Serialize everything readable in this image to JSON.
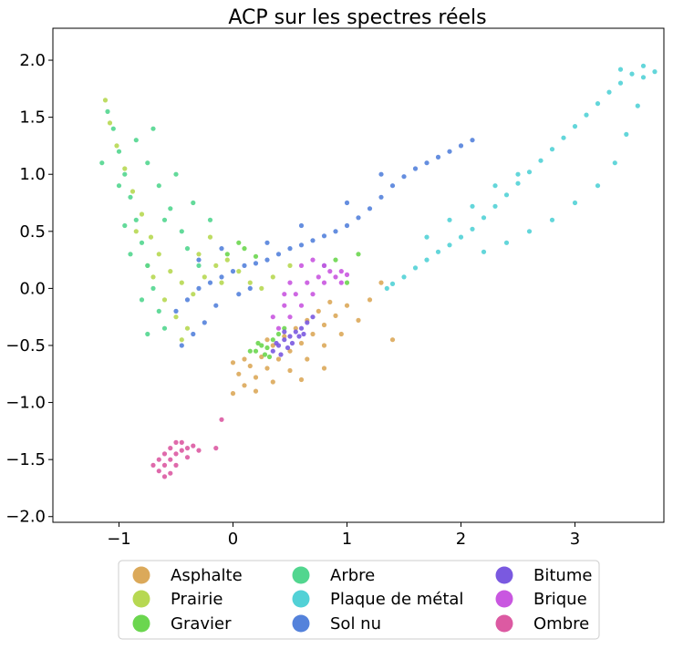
{
  "chart_data": {
    "type": "scatter",
    "title": "ACP sur les spectres réels",
    "xlabel": "",
    "ylabel": "",
    "xlim": [
      -1.58,
      3.78
    ],
    "ylim": [
      -2.05,
      2.28
    ],
    "xticks": [
      -1,
      0,
      1,
      2,
      3
    ],
    "yticks": [
      -2.0,
      -1.5,
      -1.0,
      -0.5,
      0.0,
      0.5,
      1.0,
      1.5,
      2.0
    ],
    "xtick_labels": [
      "−1",
      "0",
      "1",
      "2",
      "3"
    ],
    "ytick_labels": [
      "−2.0",
      "−1.5",
      "−1.0",
      "−0.5",
      "0.0",
      "0.5",
      "1.0",
      "1.5",
      "2.0"
    ],
    "grid": false,
    "legend_position": "bottom-center",
    "legend_columns": 3,
    "series": [
      {
        "name": "Asphalte",
        "color": "#dba95a",
        "points": [
          [
            0.0,
            -0.92
          ],
          [
            0.1,
            -0.85
          ],
          [
            0.2,
            -0.78
          ],
          [
            0.3,
            -0.7
          ],
          [
            0.4,
            -0.62
          ],
          [
            0.5,
            -0.55
          ],
          [
            0.6,
            -0.48
          ],
          [
            0.7,
            -0.4
          ],
          [
            0.8,
            -0.32
          ],
          [
            0.9,
            -0.24
          ],
          [
            1.0,
            -0.15
          ],
          [
            0.05,
            -0.75
          ],
          [
            0.15,
            -0.68
          ],
          [
            0.25,
            -0.6
          ],
          [
            0.35,
            -0.5
          ],
          [
            0.45,
            -0.42
          ],
          [
            0.55,
            -0.35
          ],
          [
            0.65,
            -0.28
          ],
          [
            0.75,
            -0.2
          ],
          [
            0.85,
            -0.12
          ],
          [
            0.2,
            -0.9
          ],
          [
            0.35,
            -0.82
          ],
          [
            0.5,
            -0.72
          ],
          [
            0.65,
            -0.62
          ],
          [
            0.8,
            -0.5
          ],
          [
            0.95,
            -0.4
          ],
          [
            1.1,
            -0.28
          ],
          [
            1.2,
            -0.1
          ],
          [
            0.1,
            -0.62
          ],
          [
            0.3,
            -0.45
          ],
          [
            0.0,
            -0.65
          ],
          [
            1.4,
            -0.45
          ],
          [
            1.3,
            0.05
          ],
          [
            0.8,
            -0.7
          ],
          [
            0.6,
            -0.8
          ]
        ]
      },
      {
        "name": "Prairie",
        "color": "#b7d852",
        "points": [
          [
            -1.12,
            1.65
          ],
          [
            -1.08,
            1.45
          ],
          [
            -1.02,
            1.25
          ],
          [
            -0.95,
            1.05
          ],
          [
            -0.88,
            0.85
          ],
          [
            -0.8,
            0.65
          ],
          [
            -0.72,
            0.45
          ],
          [
            -0.65,
            0.3
          ],
          [
            -0.55,
            0.15
          ],
          [
            -0.45,
            0.05
          ],
          [
            -0.35,
            -0.05
          ],
          [
            -0.25,
            0.1
          ],
          [
            -0.15,
            0.2
          ],
          [
            -0.05,
            0.25
          ],
          [
            0.05,
            0.15
          ],
          [
            0.15,
            0.05
          ],
          [
            0.25,
            0.0
          ],
          [
            -0.6,
            -0.1
          ],
          [
            -0.5,
            -0.25
          ],
          [
            -0.4,
            -0.35
          ],
          [
            -0.7,
            0.1
          ],
          [
            -0.3,
            0.3
          ],
          [
            -0.2,
            0.45
          ],
          [
            -0.1,
            0.05
          ],
          [
            0.35,
            0.1
          ],
          [
            0.5,
            0.2
          ],
          [
            -0.85,
            0.5
          ],
          [
            -0.75,
            0.2
          ],
          [
            -0.45,
            -0.45
          ]
        ]
      },
      {
        "name": "Gravier",
        "color": "#6bd64f",
        "points": [
          [
            0.2,
            -0.55
          ],
          [
            0.25,
            -0.5
          ],
          [
            0.3,
            -0.52
          ],
          [
            0.35,
            -0.45
          ],
          [
            0.28,
            -0.58
          ],
          [
            0.4,
            -0.4
          ],
          [
            0.22,
            -0.48
          ],
          [
            0.32,
            -0.6
          ],
          [
            0.15,
            -0.55
          ],
          [
            0.45,
            -0.35
          ],
          [
            -0.05,
            0.3
          ],
          [
            0.1,
            0.35
          ],
          [
            0.2,
            0.28
          ],
          [
            0.05,
            0.4
          ],
          [
            1.0,
            0.05
          ],
          [
            1.1,
            0.3
          ],
          [
            0.9,
            0.25
          ]
        ]
      },
      {
        "name": "Arbre",
        "color": "#52d68f",
        "points": [
          [
            -1.1,
            1.55
          ],
          [
            -1.05,
            1.4
          ],
          [
            -1.0,
            1.2
          ],
          [
            -0.95,
            1.0
          ],
          [
            -0.9,
            0.8
          ],
          [
            -0.85,
            0.6
          ],
          [
            -0.8,
            0.4
          ],
          [
            -0.75,
            0.2
          ],
          [
            -0.7,
            0.0
          ],
          [
            -0.65,
            -0.2
          ],
          [
            -0.85,
            1.3
          ],
          [
            -0.75,
            1.1
          ],
          [
            -0.65,
            0.9
          ],
          [
            -0.55,
            0.7
          ],
          [
            -0.45,
            0.5
          ],
          [
            -1.0,
            0.9
          ],
          [
            -0.9,
            0.3
          ],
          [
            -0.8,
            -0.1
          ],
          [
            -0.6,
            0.6
          ],
          [
            -0.4,
            0.35
          ],
          [
            -0.3,
            0.2
          ],
          [
            -0.75,
            -0.4
          ],
          [
            -0.5,
            1.0
          ],
          [
            -0.35,
            0.75
          ],
          [
            -1.15,
            1.1
          ],
          [
            -0.2,
            0.6
          ],
          [
            -0.95,
            0.55
          ],
          [
            -0.7,
            1.4
          ],
          [
            -0.6,
            -0.35
          ]
        ]
      },
      {
        "name": "Plaque de métal",
        "color": "#52d1d6",
        "points": [
          [
            3.6,
            1.95
          ],
          [
            3.5,
            1.88
          ],
          [
            3.4,
            1.8
          ],
          [
            3.3,
            1.72
          ],
          [
            3.2,
            1.62
          ],
          [
            3.1,
            1.52
          ],
          [
            3.0,
            1.42
          ],
          [
            2.9,
            1.32
          ],
          [
            2.8,
            1.22
          ],
          [
            2.7,
            1.12
          ],
          [
            2.6,
            1.02
          ],
          [
            2.5,
            0.92
          ],
          [
            2.4,
            0.82
          ],
          [
            2.3,
            0.72
          ],
          [
            2.2,
            0.62
          ],
          [
            2.1,
            0.52
          ],
          [
            2.0,
            0.45
          ],
          [
            1.9,
            0.38
          ],
          [
            1.8,
            0.32
          ],
          [
            1.7,
            0.25
          ],
          [
            1.6,
            0.18
          ],
          [
            1.5,
            0.1
          ],
          [
            1.4,
            0.04
          ],
          [
            1.35,
            0.0
          ],
          [
            3.55,
            1.6
          ],
          [
            3.45,
            1.35
          ],
          [
            3.35,
            1.1
          ],
          [
            3.2,
            0.9
          ],
          [
            3.0,
            0.75
          ],
          [
            2.8,
            0.6
          ],
          [
            2.6,
            0.5
          ],
          [
            2.4,
            0.4
          ],
          [
            2.2,
            0.32
          ],
          [
            2.5,
            1.0
          ],
          [
            2.3,
            0.9
          ],
          [
            2.1,
            0.72
          ],
          [
            1.9,
            0.6
          ],
          [
            1.7,
            0.45
          ],
          [
            3.6,
            1.85
          ],
          [
            3.7,
            1.9
          ],
          [
            3.4,
            1.92
          ]
        ]
      },
      {
        "name": "Sol nu",
        "color": "#5482db",
        "points": [
          [
            -0.5,
            -0.2
          ],
          [
            -0.4,
            -0.1
          ],
          [
            -0.3,
            0.0
          ],
          [
            -0.2,
            0.05
          ],
          [
            -0.1,
            0.1
          ],
          [
            0.0,
            0.15
          ],
          [
            0.1,
            0.2
          ],
          [
            0.2,
            0.22
          ],
          [
            0.3,
            0.25
          ],
          [
            0.4,
            0.3
          ],
          [
            0.5,
            0.35
          ],
          [
            0.6,
            0.38
          ],
          [
            0.7,
            0.42
          ],
          [
            0.8,
            0.46
          ],
          [
            0.9,
            0.5
          ],
          [
            1.0,
            0.55
          ],
          [
            1.1,
            0.62
          ],
          [
            1.2,
            0.7
          ],
          [
            1.3,
            0.8
          ],
          [
            1.4,
            0.9
          ],
          [
            1.5,
            0.98
          ],
          [
            1.6,
            1.05
          ],
          [
            1.7,
            1.1
          ],
          [
            1.8,
            1.15
          ],
          [
            1.9,
            1.2
          ],
          [
            2.0,
            1.25
          ],
          [
            2.1,
            1.3
          ],
          [
            -0.35,
            -0.4
          ],
          [
            -0.45,
            -0.5
          ],
          [
            -0.25,
            -0.3
          ],
          [
            -0.15,
            -0.15
          ],
          [
            0.05,
            -0.05
          ],
          [
            0.15,
            0.0
          ],
          [
            -0.3,
            0.25
          ],
          [
            -0.1,
            0.35
          ],
          [
            0.3,
            0.4
          ],
          [
            0.6,
            0.55
          ],
          [
            1.0,
            0.75
          ],
          [
            1.3,
            1.0
          ],
          [
            0.8,
            0.2
          ]
        ]
      },
      {
        "name": "Bitume",
        "color": "#7a59e0",
        "points": [
          [
            0.35,
            -0.55
          ],
          [
            0.4,
            -0.5
          ],
          [
            0.45,
            -0.45
          ],
          [
            0.5,
            -0.42
          ],
          [
            0.55,
            -0.38
          ],
          [
            0.6,
            -0.35
          ],
          [
            0.65,
            -0.3
          ],
          [
            0.7,
            -0.25
          ],
          [
            0.42,
            -0.58
          ],
          [
            0.48,
            -0.52
          ],
          [
            0.38,
            -0.48
          ],
          [
            0.52,
            -0.48
          ],
          [
            0.58,
            -0.42
          ],
          [
            0.62,
            -0.4
          ],
          [
            0.45,
            -0.38
          ]
        ]
      },
      {
        "name": "Brique",
        "color": "#c957e0",
        "points": [
          [
            0.35,
            -0.25
          ],
          [
            0.45,
            -0.15
          ],
          [
            0.55,
            -0.05
          ],
          [
            0.65,
            0.05
          ],
          [
            0.75,
            0.1
          ],
          [
            0.85,
            0.15
          ],
          [
            0.95,
            0.15
          ],
          [
            0.4,
            -0.35
          ],
          [
            0.5,
            -0.25
          ],
          [
            0.6,
            -0.15
          ],
          [
            0.7,
            -0.05
          ],
          [
            0.8,
            0.05
          ],
          [
            0.9,
            0.1
          ],
          [
            0.6,
            0.2
          ],
          [
            0.7,
            0.25
          ],
          [
            0.8,
            0.2
          ],
          [
            0.5,
            0.05
          ],
          [
            0.45,
            -0.05
          ],
          [
            0.95,
            0.05
          ],
          [
            1.0,
            0.12
          ]
        ]
      },
      {
        "name": "Ombre",
        "color": "#dc5aa2",
        "points": [
          [
            -0.65,
            -1.6
          ],
          [
            -0.6,
            -1.55
          ],
          [
            -0.55,
            -1.5
          ],
          [
            -0.5,
            -1.45
          ],
          [
            -0.45,
            -1.42
          ],
          [
            -0.4,
            -1.4
          ],
          [
            -0.35,
            -1.38
          ],
          [
            -0.3,
            -1.42
          ],
          [
            -0.6,
            -1.45
          ],
          [
            -0.55,
            -1.62
          ],
          [
            -0.5,
            -1.55
          ],
          [
            -0.45,
            -1.35
          ],
          [
            -0.65,
            -1.5
          ],
          [
            -0.5,
            -1.35
          ],
          [
            -0.4,
            -1.48
          ],
          [
            -0.7,
            -1.55
          ],
          [
            -0.6,
            -1.65
          ],
          [
            -0.55,
            -1.4
          ],
          [
            -0.15,
            -1.4
          ],
          [
            -0.1,
            -1.15
          ]
        ]
      }
    ]
  }
}
